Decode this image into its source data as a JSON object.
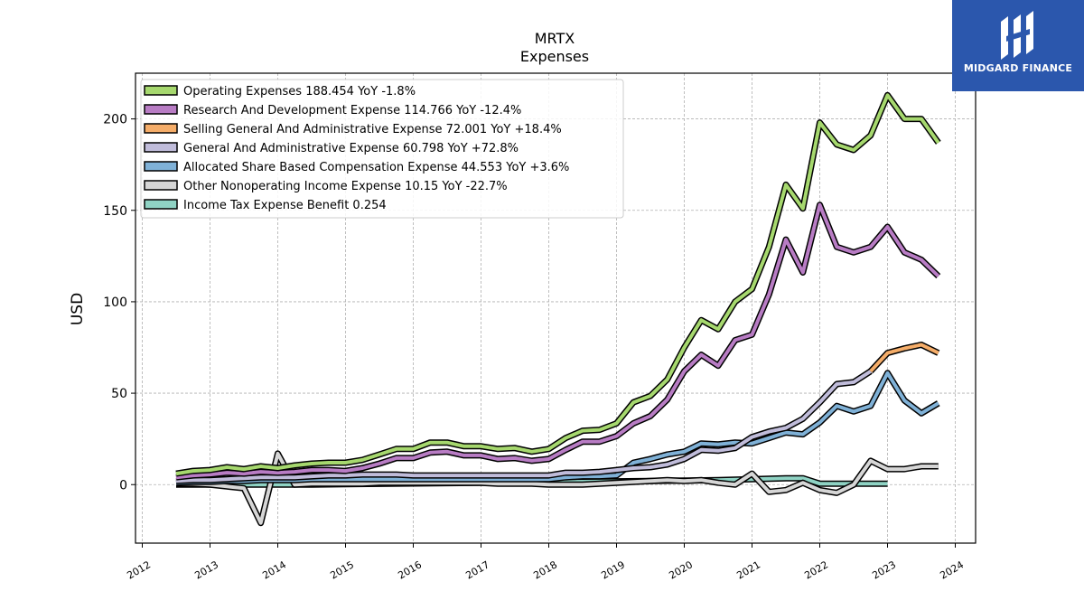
{
  "brand": {
    "name": "MIDGARD FINANCE",
    "bg_color": "#2b57ad"
  },
  "chart_data": {
    "type": "line",
    "title": "MRTX",
    "subtitle": "Expenses",
    "xlabel": "",
    "ylabel": "USD",
    "xlim": [
      2011.9,
      2024.3
    ],
    "ylim": [
      -32,
      225
    ],
    "x_ticks": [
      "2012",
      "2013",
      "2014",
      "2015",
      "2016",
      "2017",
      "2018",
      "2019",
      "2020",
      "2021",
      "2022",
      "2023",
      "2024"
    ],
    "y_ticks": [
      0,
      50,
      100,
      150,
      200
    ],
    "grid": true,
    "legend_position": "top-left",
    "series": [
      {
        "name": "Operating Expenses",
        "legend": "Operating Expenses  188.454 YoY -1.8%",
        "color": "#a6d86e",
        "x": [
          2012.5,
          2012.75,
          2013.0,
          2013.25,
          2013.5,
          2013.75,
          2014.0,
          2014.25,
          2014.5,
          2014.75,
          2015.0,
          2015.25,
          2015.5,
          2015.75,
          2016.0,
          2016.25,
          2016.5,
          2016.75,
          2017.0,
          2017.25,
          2017.5,
          2017.75,
          2018.0,
          2018.25,
          2018.5,
          2018.75,
          2019.0,
          2019.25,
          2019.5,
          2019.75,
          2020.0,
          2020.25,
          2020.5,
          2020.75,
          2021.0,
          2021.25,
          2021.5,
          2021.75,
          2022.0,
          2022.25,
          2022.5,
          2022.75,
          2023.0,
          2023.25,
          2023.5,
          2023.75
        ],
        "values": [
          6,
          7.5,
          8,
          9.5,
          8.5,
          10,
          9,
          10.5,
          11.5,
          12,
          12,
          13.5,
          16.5,
          19.5,
          19.5,
          23,
          23,
          21,
          21,
          19.5,
          20,
          18,
          19.5,
          25.5,
          29.5,
          30,
          33.5,
          45,
          48.5,
          57.5,
          75,
          90,
          85,
          100,
          107,
          130,
          164,
          151,
          198,
          186,
          183,
          191,
          213,
          200,
          200,
          187
        ]
      },
      {
        "name": "Research And Development Expense",
        "legend": "Research And Development Expense  114.766 YoY -12.4%",
        "color": "#b87cc4",
        "x": [
          2012.5,
          2012.75,
          2013.0,
          2013.25,
          2013.5,
          2013.75,
          2014.0,
          2014.25,
          2014.5,
          2014.75,
          2015.0,
          2015.25,
          2015.5,
          2015.75,
          2016.0,
          2016.25,
          2016.5,
          2016.75,
          2017.0,
          2017.25,
          2017.5,
          2017.75,
          2018.0,
          2018.25,
          2018.5,
          2018.75,
          2019.0,
          2019.25,
          2019.5,
          2019.75,
          2020.0,
          2020.25,
          2020.5,
          2020.75,
          2021.0,
          2021.25,
          2021.5,
          2021.75,
          2022.0,
          2022.25,
          2022.5,
          2022.75,
          2023.0,
          2023.25,
          2023.5,
          2023.75
        ],
        "values": [
          4,
          5,
          5.5,
          6.5,
          6,
          7,
          6.5,
          7,
          8,
          8,
          7.5,
          9,
          11.5,
          14.5,
          14.5,
          17.5,
          18,
          16,
          16,
          14,
          14.5,
          13,
          14,
          19,
          23.5,
          23.5,
          26.5,
          33.5,
          37.5,
          46.5,
          62,
          71,
          65,
          79,
          82,
          104,
          134,
          116,
          153,
          130,
          127,
          130,
          141,
          127,
          123,
          114
        ]
      },
      {
        "name": "Selling General And Administrative Expense",
        "legend": "Selling General And Administrative Expense  72.001 YoY +18.4%",
        "color": "#f5ad69",
        "x": [
          2022.75,
          2023.0,
          2023.25,
          2023.5,
          2023.75
        ],
        "values": [
          62,
          72,
          74.5,
          76.5,
          72
        ]
      },
      {
        "name": "General And Administrative Expense",
        "legend": "General And Administrative Expense  60.798 YoY +72.8%",
        "color": "#c0bcda",
        "x": [
          2012.5,
          2012.75,
          2013.0,
          2013.25,
          2013.5,
          2013.75,
          2014.0,
          2014.25,
          2014.5,
          2014.75,
          2015.0,
          2015.25,
          2015.5,
          2015.75,
          2016.0,
          2016.25,
          2016.5,
          2016.75,
          2017.0,
          2017.25,
          2017.5,
          2017.75,
          2018.0,
          2018.25,
          2018.5,
          2018.75,
          2019.0,
          2019.25,
          2019.5,
          2019.75,
          2020.0,
          2020.25,
          2020.5,
          2020.75,
          2021.0,
          2021.25,
          2021.5,
          2021.75,
          2022.0,
          2022.25,
          2022.5,
          2022.75
        ],
        "values": [
          2,
          2.5,
          2.5,
          3,
          3.5,
          4,
          4,
          4,
          4.5,
          5,
          5,
          5.5,
          5.5,
          5.5,
          5,
          5,
          5,
          5,
          5,
          5,
          5,
          5,
          5,
          6.5,
          6.5,
          7,
          8,
          9,
          9.5,
          11,
          14,
          19,
          18.5,
          20,
          26,
          29,
          31,
          36,
          45,
          55,
          56,
          62
        ]
      },
      {
        "name": "Allocated Share Based Compensation Expense",
        "legend": "Allocated Share Based Compensation Expense  44.553 YoY +3.6%",
        "color": "#7fb1d7",
        "x": [
          2012.5,
          2012.75,
          2013.0,
          2013.25,
          2013.5,
          2013.75,
          2014.0,
          2014.25,
          2014.5,
          2014.75,
          2015.0,
          2015.25,
          2015.5,
          2015.75,
          2016.0,
          2016.25,
          2016.5,
          2016.75,
          2017.0,
          2017.25,
          2017.5,
          2017.75,
          2018.0,
          2018.25,
          2018.5,
          2018.75,
          2019.0,
          2019.25,
          2019.5,
          2019.75,
          2020.0,
          2020.25,
          2020.5,
          2020.75,
          2021.0,
          2021.25,
          2021.5,
          2021.75,
          2022.0,
          2022.25,
          2022.5,
          2022.75,
          2023.0,
          2023.25,
          2023.5,
          2023.75
        ],
        "values": [
          1,
          1.5,
          1.5,
          2,
          2,
          2.5,
          2.5,
          2.5,
          3,
          3,
          3,
          3,
          3,
          3,
          3,
          3,
          3,
          3,
          3,
          3,
          3,
          3,
          3,
          4,
          4.5,
          4.5,
          5,
          12,
          14,
          16.5,
          18,
          22.5,
          22,
          23,
          22.5,
          25.5,
          28.5,
          27.5,
          34,
          43,
          40,
          43,
          61,
          46,
          39,
          44.5
        ]
      },
      {
        "name": "Other Nonoperating Income Expense",
        "legend": "Other Nonoperating Income Expense  10.15 YoY -22.7%",
        "color": "#d6d6d6",
        "x": [
          2012.5,
          2012.75,
          2013.0,
          2013.25,
          2013.5,
          2013.75,
          2014.0,
          2014.25,
          2014.5,
          2014.75,
          2015.0,
          2015.25,
          2015.5,
          2015.75,
          2016.0,
          2016.25,
          2016.5,
          2016.75,
          2017.0,
          2017.25,
          2017.5,
          2017.75,
          2018.0,
          2018.25,
          2018.5,
          2018.75,
          2019.0,
          2019.25,
          2019.5,
          2019.75,
          2020.0,
          2020.25,
          2020.5,
          2020.75,
          2021.0,
          2021.25,
          2021.5,
          2021.75,
          2022.0,
          2022.25,
          2022.5,
          2022.75,
          2023.0,
          2023.25,
          2023.5,
          2023.75
        ],
        "values": [
          0.5,
          0.5,
          0,
          -1,
          -2,
          -21,
          17,
          0,
          0.5,
          0.5,
          0.5,
          0.5,
          1,
          1,
          1,
          1,
          1,
          1,
          1,
          0.5,
          0.5,
          0.5,
          0,
          0,
          0,
          0.5,
          1,
          1.5,
          2,
          2.5,
          2,
          2.5,
          1,
          0,
          6,
          -4,
          -3,
          1,
          -3,
          -4.5,
          0,
          13,
          8.5,
          8.5,
          10,
          10
        ]
      },
      {
        "name": "Income Tax Expense Benefit",
        "legend": "Income Tax Expense Benefit  0.254",
        "color": "#8fd3c4",
        "x": [
          2012.5,
          2013.0,
          2013.5,
          2014.0,
          2014.5,
          2015.0,
          2015.5,
          2016.0,
          2016.5,
          2017.0,
          2017.5,
          2018.0,
          2018.5,
          2019.0,
          2019.5,
          2020.0,
          2020.5,
          2021.0,
          2021.5,
          2021.75,
          2022.0,
          2022.5,
          2023.0
        ],
        "values": [
          0,
          0,
          0,
          0,
          0,
          0.2,
          0.4,
          0.6,
          0.8,
          1,
          1.2,
          1.4,
          1.6,
          1.8,
          2,
          2.2,
          2.5,
          3,
          3.5,
          3.5,
          0.5,
          0.5,
          0.5
        ]
      }
    ]
  }
}
